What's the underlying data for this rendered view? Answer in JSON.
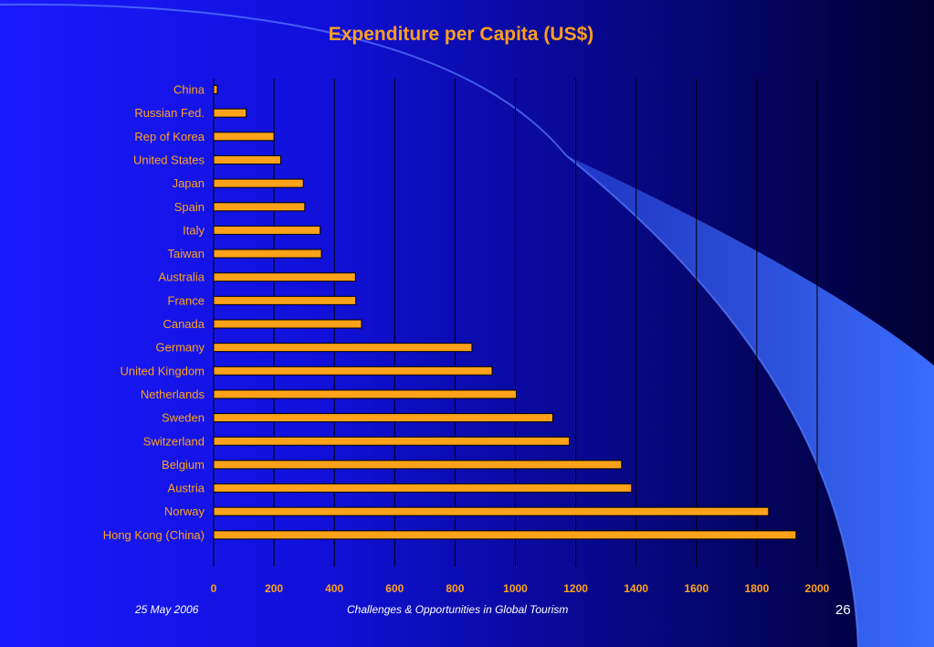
{
  "slide": {
    "title": "Expenditure per Capita (US$)",
    "date": "25 May 2006",
    "footer_title": "Challenges & Opportunities in Global Tourism",
    "page_number": "26"
  },
  "colors": {
    "bar": "#ffa21a",
    "bar_stroke": "#000000",
    "label": "#ffa21a",
    "gridline": "#000000",
    "accent_shape": "#3366ff"
  },
  "chart_data": {
    "type": "bar",
    "orientation": "horizontal",
    "title": "Expenditure per Capita (US$)",
    "xlabel": "",
    "ylabel": "",
    "xlim": [
      0,
      2000
    ],
    "xticks": [
      0,
      200,
      400,
      600,
      800,
      1000,
      1200,
      1400,
      1600,
      1800,
      2000
    ],
    "grid": true,
    "legend": "none",
    "categories": [
      "China",
      "Russian Fed.",
      "Rep of Korea",
      "United  States",
      "Japan",
      "Spain",
      "Italy",
      "Taiwan",
      "Australia",
      "France",
      "Canada",
      "Germany",
      "United Kingdom",
      "Netherlands",
      "Sweden",
      "Switzerland",
      "Belgium",
      "Austria",
      "Norway",
      "Hong Kong (China)"
    ],
    "values": [
      12,
      108,
      200,
      222,
      297,
      302,
      353,
      357,
      470,
      471,
      490,
      856,
      923,
      1003,
      1124,
      1179,
      1352,
      1385,
      1839,
      1930
    ]
  }
}
